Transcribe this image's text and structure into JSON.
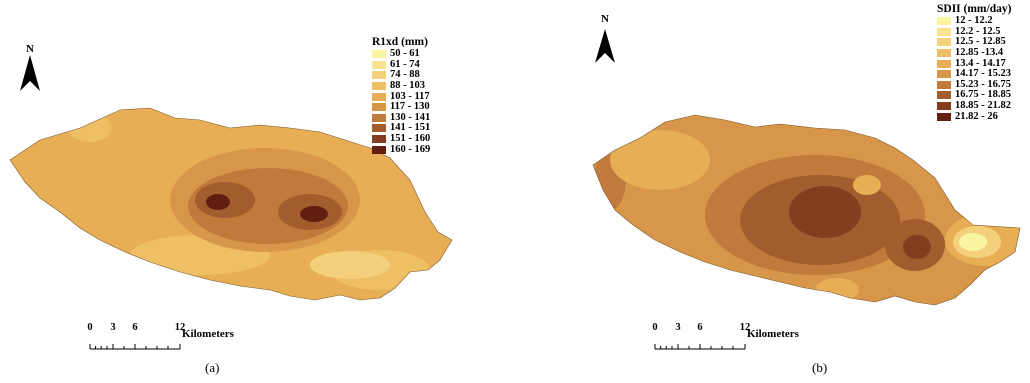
{
  "panels": [
    {
      "id": "a",
      "caption": "(a)",
      "north_label": "N",
      "legend": {
        "title": "R1xd (mm)",
        "classes": [
          {
            "label": "50 - 61",
            "color": "#fbf4a0"
          },
          {
            "label": "61 - 74",
            "color": "#f9e291"
          },
          {
            "label": "74 - 88",
            "color": "#f5d07c"
          },
          {
            "label": "88 - 103",
            "color": "#efbf66"
          },
          {
            "label": "103 - 117",
            "color": "#e8ae56"
          },
          {
            "label": "117 - 130",
            "color": "#d8964a"
          },
          {
            "label": "130 - 141",
            "color": "#c07a3c"
          },
          {
            "label": "141 - 151",
            "color": "#a35c2e"
          },
          {
            "label": "151 - 160",
            "color": "#843d20"
          },
          {
            "label": "160 - 169",
            "color": "#621e10"
          }
        ]
      },
      "scale": {
        "ticks": [
          "0",
          "3",
          "6",
          "12"
        ],
        "units": "Kilometers"
      }
    },
    {
      "id": "b",
      "caption": "(b)",
      "north_label": "N",
      "legend": {
        "title": "SDII (mm/day)",
        "classes": [
          {
            "label": "12 - 12.2",
            "color": "#fbf4a0"
          },
          {
            "label": "12.2 - 12.5",
            "color": "#f9e291"
          },
          {
            "label": "12.5 - 12.85",
            "color": "#f5d07c"
          },
          {
            "label": "12.85 -13.4",
            "color": "#efbf66"
          },
          {
            "label": "13.4 - 14.17",
            "color": "#e8ae56"
          },
          {
            "label": "14.17 - 15.23",
            "color": "#d8964a"
          },
          {
            "label": "15.23 - 16.75",
            "color": "#c07a3c"
          },
          {
            "label": "16.75 - 18.85",
            "color": "#a35c2e"
          },
          {
            "label": "18.85 - 21.82",
            "color": "#843d20"
          },
          {
            "label": "21.82 - 26",
            "color": "#621e10"
          }
        ]
      },
      "scale": {
        "ticks": [
          "0",
          "3",
          "6",
          "12"
        ],
        "units": "Kilometers"
      }
    }
  ]
}
